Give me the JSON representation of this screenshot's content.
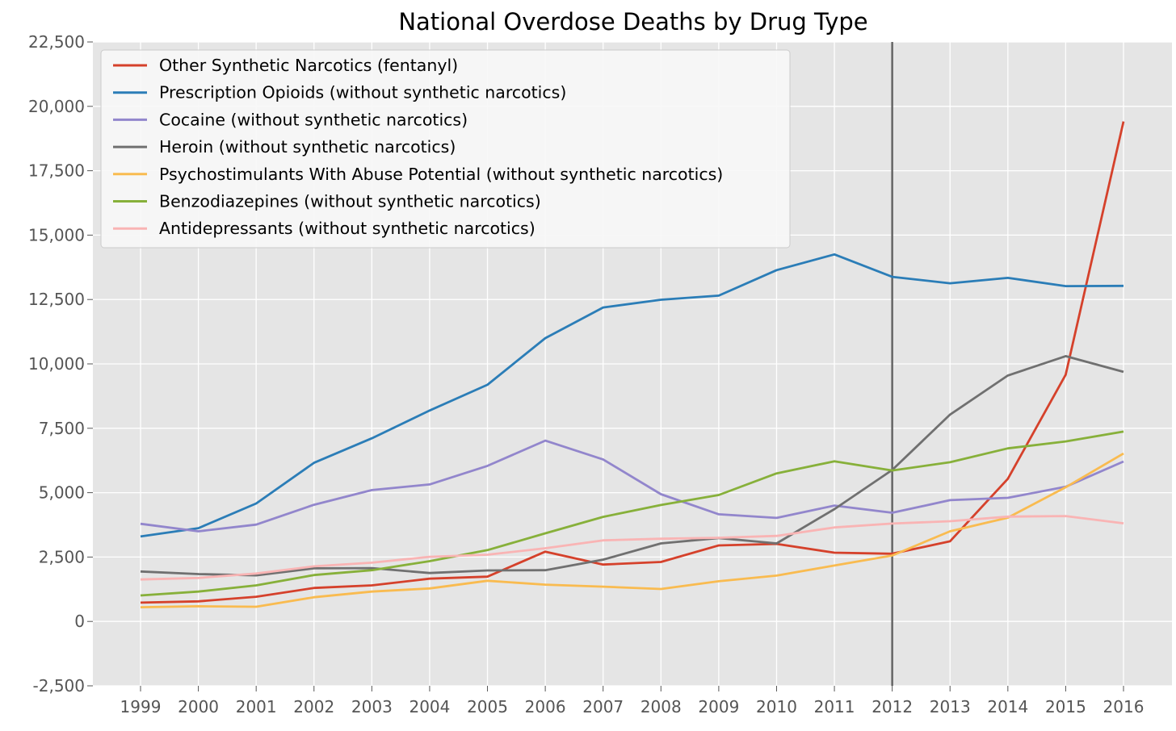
{
  "chart_data": {
    "type": "line",
    "title": "National Overdose Deaths by Drug Type",
    "xlabel": "",
    "ylabel": "",
    "x": [
      1999,
      2000,
      2001,
      2002,
      2003,
      2004,
      2005,
      2006,
      2007,
      2008,
      2009,
      2010,
      2011,
      2012,
      2013,
      2014,
      2015,
      2016
    ],
    "x_tick_labels": [
      "1999",
      "2000",
      "2001",
      "2002",
      "2003",
      "2004",
      "2005",
      "2006",
      "2007",
      "2008",
      "2009",
      "2010",
      "2011",
      "2012",
      "2013",
      "2014",
      "2015",
      "2016"
    ],
    "ylim": [
      -2500,
      22500
    ],
    "y_ticks": [
      -2500,
      0,
      2500,
      5000,
      7500,
      10000,
      12500,
      15000,
      17500,
      20000,
      22500
    ],
    "y_tick_labels": [
      "-2,500",
      "0",
      "2,500",
      "5,000",
      "7,500",
      "10,000",
      "12,500",
      "15,000",
      "17,500",
      "20,000",
      "22,500"
    ],
    "grid": true,
    "legend_position": "top-left",
    "vertical_line_x": 2012,
    "series": [
      {
        "name": "Other Synthetic Narcotics (fentanyl)",
        "color": "#d5412b",
        "values": [
          730,
          780,
          960,
          1300,
          1400,
          1660,
          1740,
          2710,
          2210,
          2310,
          2950,
          3010,
          2670,
          2630,
          3110,
          5540,
          9580,
          19410
        ]
      },
      {
        "name": "Prescription Opioids (without synthetic narcotics)",
        "color": "#2b7db7",
        "values": [
          3300,
          3620,
          4580,
          6160,
          7110,
          8190,
          9190,
          11000,
          12190,
          12490,
          12650,
          13640,
          14250,
          13380,
          13130,
          13340,
          13020,
          13030
        ]
      },
      {
        "name": "Cocaine (without synthetic narcotics)",
        "color": "#9286cc",
        "values": [
          3790,
          3500,
          3760,
          4530,
          5100,
          5320,
          6040,
          7020,
          6290,
          4940,
          4160,
          4020,
          4500,
          4220,
          4710,
          4800,
          5230,
          6210
        ]
      },
      {
        "name": "Heroin (without synthetic narcotics)",
        "color": "#707070",
        "values": [
          1940,
          1840,
          1790,
          2060,
          2070,
          1880,
          1980,
          1990,
          2400,
          3030,
          3240,
          3030,
          4360,
          5880,
          8030,
          9550,
          10300,
          9690
        ]
      },
      {
        "name": "Psychostimulants With Abuse Potential (without synthetic narcotics)",
        "color": "#f9bb50",
        "values": [
          550,
          590,
          570,
          940,
          1160,
          1280,
          1580,
          1430,
          1350,
          1260,
          1560,
          1780,
          2170,
          2560,
          3500,
          4030,
          5210,
          6520
        ]
      },
      {
        "name": "Benzodiazepines (without synthetic narcotics)",
        "color": "#87b03a",
        "values": [
          1010,
          1160,
          1400,
          1800,
          1990,
          2340,
          2770,
          3420,
          4060,
          4520,
          4910,
          5750,
          6220,
          5860,
          6180,
          6720,
          6990,
          7370
        ]
      },
      {
        "name": "Antidepressants (without synthetic narcotics)",
        "color": "#f9b4b4",
        "values": [
          1630,
          1690,
          1860,
          2140,
          2280,
          2510,
          2590,
          2840,
          3150,
          3210,
          3250,
          3320,
          3650,
          3800,
          3890,
          4070,
          4090,
          3810
        ]
      }
    ]
  }
}
